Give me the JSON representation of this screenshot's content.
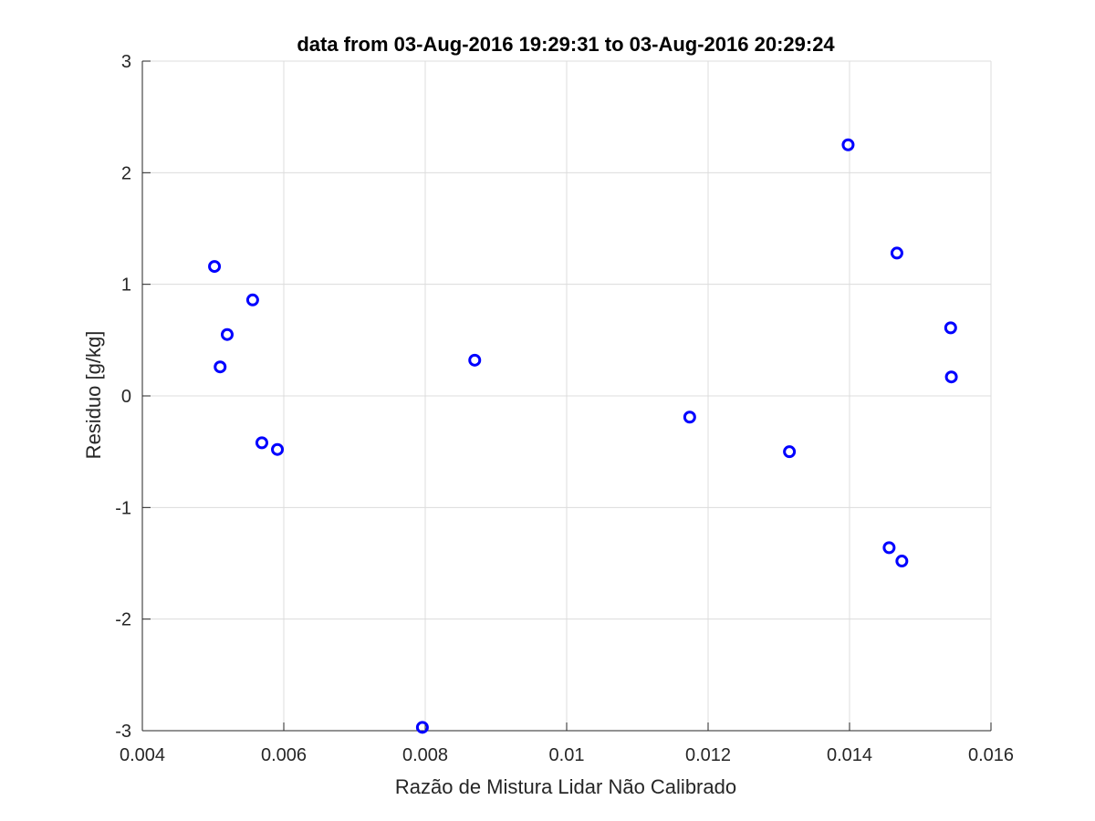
{
  "chart_data": {
    "type": "scatter",
    "title": "data from 03-Aug-2016 19:29:31 to 03-Aug-2016 20:29:24",
    "xlabel": "Razão de Mistura Lidar Não Calibrado",
    "ylabel": "Residuo [g/kg]",
    "xlim": [
      0.004,
      0.016
    ],
    "ylim": [
      -3,
      3
    ],
    "xticks": [
      0.004,
      0.006,
      0.008,
      0.01,
      0.012,
      0.014,
      0.016
    ],
    "xtick_labels": [
      "0.004",
      "0.006",
      "0.008",
      "0.01",
      "0.012",
      "0.014",
      "0.016"
    ],
    "yticks": [
      -3,
      -2,
      -1,
      0,
      1,
      2,
      3
    ],
    "ytick_labels": [
      "-3",
      "-2",
      "-1",
      "0",
      "1",
      "2",
      "3"
    ],
    "grid": true,
    "marker": "circle",
    "marker_color": "#0000ff",
    "series": [
      {
        "x": [
          0.00502,
          0.0051,
          0.0052,
          0.00556,
          0.00569,
          0.00591,
          0.00796,
          0.0087,
          0.01174,
          0.01315,
          0.01398,
          0.01456,
          0.01467,
          0.01474,
          0.01543,
          0.01544
        ],
        "y": [
          1.16,
          0.26,
          0.55,
          0.86,
          -0.42,
          -0.48,
          -2.97,
          0.32,
          -0.19,
          -0.5,
          2.25,
          -1.36,
          1.28,
          -1.48,
          0.61,
          0.17
        ]
      }
    ]
  }
}
